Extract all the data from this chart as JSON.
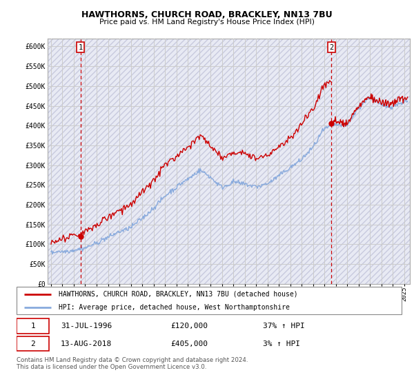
{
  "title1": "HAWTHORNS, CHURCH ROAD, BRACKLEY, NN13 7BU",
  "title2": "Price paid vs. HM Land Registry's House Price Index (HPI)",
  "ylim": [
    0,
    620000
  ],
  "xlim_left": 1993.7,
  "xlim_right": 2025.5,
  "yticks": [
    0,
    50000,
    100000,
    150000,
    200000,
    250000,
    300000,
    350000,
    400000,
    450000,
    500000,
    550000,
    600000
  ],
  "ytick_labels": [
    "£0",
    "£50K",
    "£100K",
    "£150K",
    "£200K",
    "£250K",
    "£300K",
    "£350K",
    "£400K",
    "£450K",
    "£500K",
    "£550K",
    "£600K"
  ],
  "xtick_years": [
    1994,
    1995,
    1996,
    1997,
    1998,
    1999,
    2000,
    2001,
    2002,
    2003,
    2004,
    2005,
    2006,
    2007,
    2008,
    2009,
    2010,
    2011,
    2012,
    2013,
    2014,
    2015,
    2016,
    2017,
    2018,
    2019,
    2020,
    2021,
    2022,
    2023,
    2024,
    2025
  ],
  "sale1_year": 1996.58,
  "sale1_price": 120000,
  "sale2_year": 2018.62,
  "sale2_price": 405000,
  "red_color": "#cc0000",
  "blue_color": "#88aadd",
  "grid_color": "#cccccc",
  "bg_color": "#e8eaf4",
  "hatch_color": "#c8cade",
  "legend1": "HAWTHORNS, CHURCH ROAD, BRACKLEY, NN13 7BU (detached house)",
  "legend2": "HPI: Average price, detached house, West Northamptonshire",
  "ann1_date": "31-JUL-1996",
  "ann1_price": "£120,000",
  "ann1_hpi": "37% ↑ HPI",
  "ann2_date": "13-AUG-2018",
  "ann2_price": "£405,000",
  "ann2_hpi": "3% ↑ HPI",
  "footer": "Contains HM Land Registry data © Crown copyright and database right 2024.\nThis data is licensed under the Open Government Licence v3.0."
}
